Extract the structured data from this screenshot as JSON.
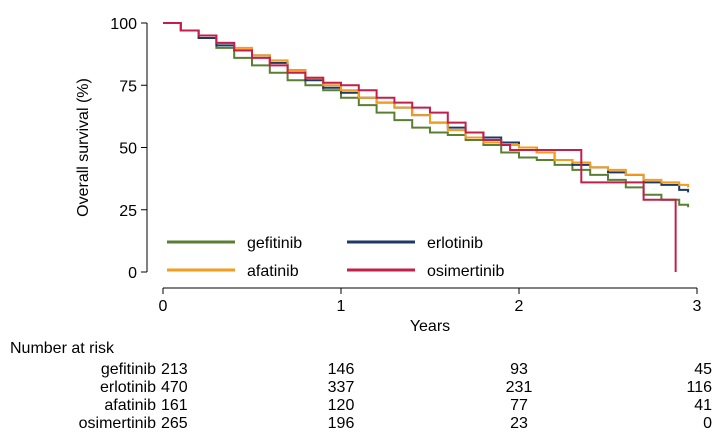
{
  "chart_data": {
    "type": "line",
    "subtype": "kaplan-meier step curves",
    "title": "",
    "xlabel": "Years",
    "ylabel": "Overall survival (%)",
    "xlim": [
      0,
      3
    ],
    "ylim": [
      0,
      100
    ],
    "xticks": [
      0,
      1,
      2,
      3
    ],
    "yticks": [
      0,
      25,
      50,
      75,
      100
    ],
    "grid": false,
    "legend_position": "bottom-left inside plot, two columns",
    "series": [
      {
        "name": "gefitinib",
        "color": "#5a7f32",
        "points": [
          [
            0,
            100
          ],
          [
            0.1,
            97
          ],
          [
            0.2,
            94
          ],
          [
            0.3,
            90
          ],
          [
            0.4,
            86
          ],
          [
            0.5,
            83
          ],
          [
            0.6,
            80
          ],
          [
            0.7,
            77
          ],
          [
            0.8,
            75
          ],
          [
            0.9,
            73
          ],
          [
            1.0,
            70
          ],
          [
            1.1,
            67
          ],
          [
            1.2,
            64
          ],
          [
            1.3,
            61
          ],
          [
            1.4,
            58
          ],
          [
            1.5,
            56
          ],
          [
            1.6,
            55
          ],
          [
            1.7,
            53
          ],
          [
            1.8,
            51
          ],
          [
            1.9,
            48
          ],
          [
            2.0,
            46
          ],
          [
            2.1,
            45
          ],
          [
            2.2,
            43
          ],
          [
            2.3,
            41
          ],
          [
            2.4,
            39
          ],
          [
            2.5,
            37
          ],
          [
            2.6,
            34
          ],
          [
            2.7,
            31
          ],
          [
            2.8,
            29
          ],
          [
            2.9,
            27
          ],
          [
            2.95,
            26
          ]
        ]
      },
      {
        "name": "erlotinib",
        "color": "#1b3a66",
        "points": [
          [
            0,
            100
          ],
          [
            0.1,
            97
          ],
          [
            0.2,
            94
          ],
          [
            0.3,
            91
          ],
          [
            0.4,
            89
          ],
          [
            0.5,
            87
          ],
          [
            0.6,
            84
          ],
          [
            0.7,
            81
          ],
          [
            0.8,
            77
          ],
          [
            0.9,
            74
          ],
          [
            1.0,
            72
          ],
          [
            1.1,
            70
          ],
          [
            1.2,
            68
          ],
          [
            1.3,
            66
          ],
          [
            1.4,
            63
          ],
          [
            1.5,
            60
          ],
          [
            1.6,
            58
          ],
          [
            1.7,
            56
          ],
          [
            1.8,
            54
          ],
          [
            1.9,
            52
          ],
          [
            2.0,
            50
          ],
          [
            2.1,
            48
          ],
          [
            2.2,
            45
          ],
          [
            2.3,
            43
          ],
          [
            2.4,
            42
          ],
          [
            2.5,
            40
          ],
          [
            2.6,
            39
          ],
          [
            2.7,
            36
          ],
          [
            2.8,
            35
          ],
          [
            2.9,
            33
          ],
          [
            2.95,
            32
          ]
        ]
      },
      {
        "name": "afatinib",
        "color": "#f39c1e",
        "points": [
          [
            0,
            100
          ],
          [
            0.1,
            97
          ],
          [
            0.2,
            95
          ],
          [
            0.3,
            92
          ],
          [
            0.4,
            90
          ],
          [
            0.5,
            87
          ],
          [
            0.6,
            85
          ],
          [
            0.7,
            81
          ],
          [
            0.8,
            78
          ],
          [
            0.9,
            75
          ],
          [
            1.0,
            73
          ],
          [
            1.1,
            70
          ],
          [
            1.2,
            68
          ],
          [
            1.3,
            66
          ],
          [
            1.4,
            63
          ],
          [
            1.5,
            60
          ],
          [
            1.6,
            57
          ],
          [
            1.7,
            54
          ],
          [
            1.8,
            52
          ],
          [
            1.9,
            51
          ],
          [
            2.0,
            50
          ],
          [
            2.1,
            48
          ],
          [
            2.2,
            45
          ],
          [
            2.3,
            44
          ],
          [
            2.4,
            42
          ],
          [
            2.5,
            41
          ],
          [
            2.6,
            39
          ],
          [
            2.7,
            37
          ],
          [
            2.8,
            36
          ],
          [
            2.9,
            35
          ],
          [
            2.95,
            34
          ]
        ]
      },
      {
        "name": "osimertinib",
        "color": "#c21f4a",
        "points": [
          [
            0,
            100
          ],
          [
            0.1,
            97
          ],
          [
            0.2,
            95
          ],
          [
            0.3,
            92
          ],
          [
            0.4,
            89
          ],
          [
            0.5,
            86
          ],
          [
            0.6,
            83
          ],
          [
            0.7,
            80
          ],
          [
            0.8,
            78
          ],
          [
            0.9,
            76
          ],
          [
            1.0,
            75
          ],
          [
            1.1,
            73
          ],
          [
            1.2,
            70
          ],
          [
            1.3,
            68
          ],
          [
            1.4,
            66
          ],
          [
            1.5,
            64
          ],
          [
            1.6,
            60
          ],
          [
            1.7,
            56
          ],
          [
            1.8,
            53
          ],
          [
            1.9,
            51
          ],
          [
            1.95,
            49
          ],
          [
            2.35,
            49
          ],
          [
            2.35,
            36
          ],
          [
            2.7,
            36
          ],
          [
            2.7,
            29
          ],
          [
            2.88,
            29
          ],
          [
            2.88,
            0
          ]
        ]
      }
    ]
  },
  "risk_table": {
    "heading": "Number at risk",
    "columns": [
      0,
      1,
      2,
      3
    ],
    "rows": [
      {
        "label": "gefitinib",
        "values": [
          "213",
          "146",
          "93",
          "45"
        ]
      },
      {
        "label": "erlotinib",
        "values": [
          "470",
          "337",
          "231",
          "116"
        ]
      },
      {
        "label": "afatinib",
        "values": [
          "161",
          "120",
          "77",
          "41"
        ]
      },
      {
        "label": "osimertinib",
        "values": [
          "265",
          "196",
          "23",
          "0"
        ]
      }
    ]
  }
}
